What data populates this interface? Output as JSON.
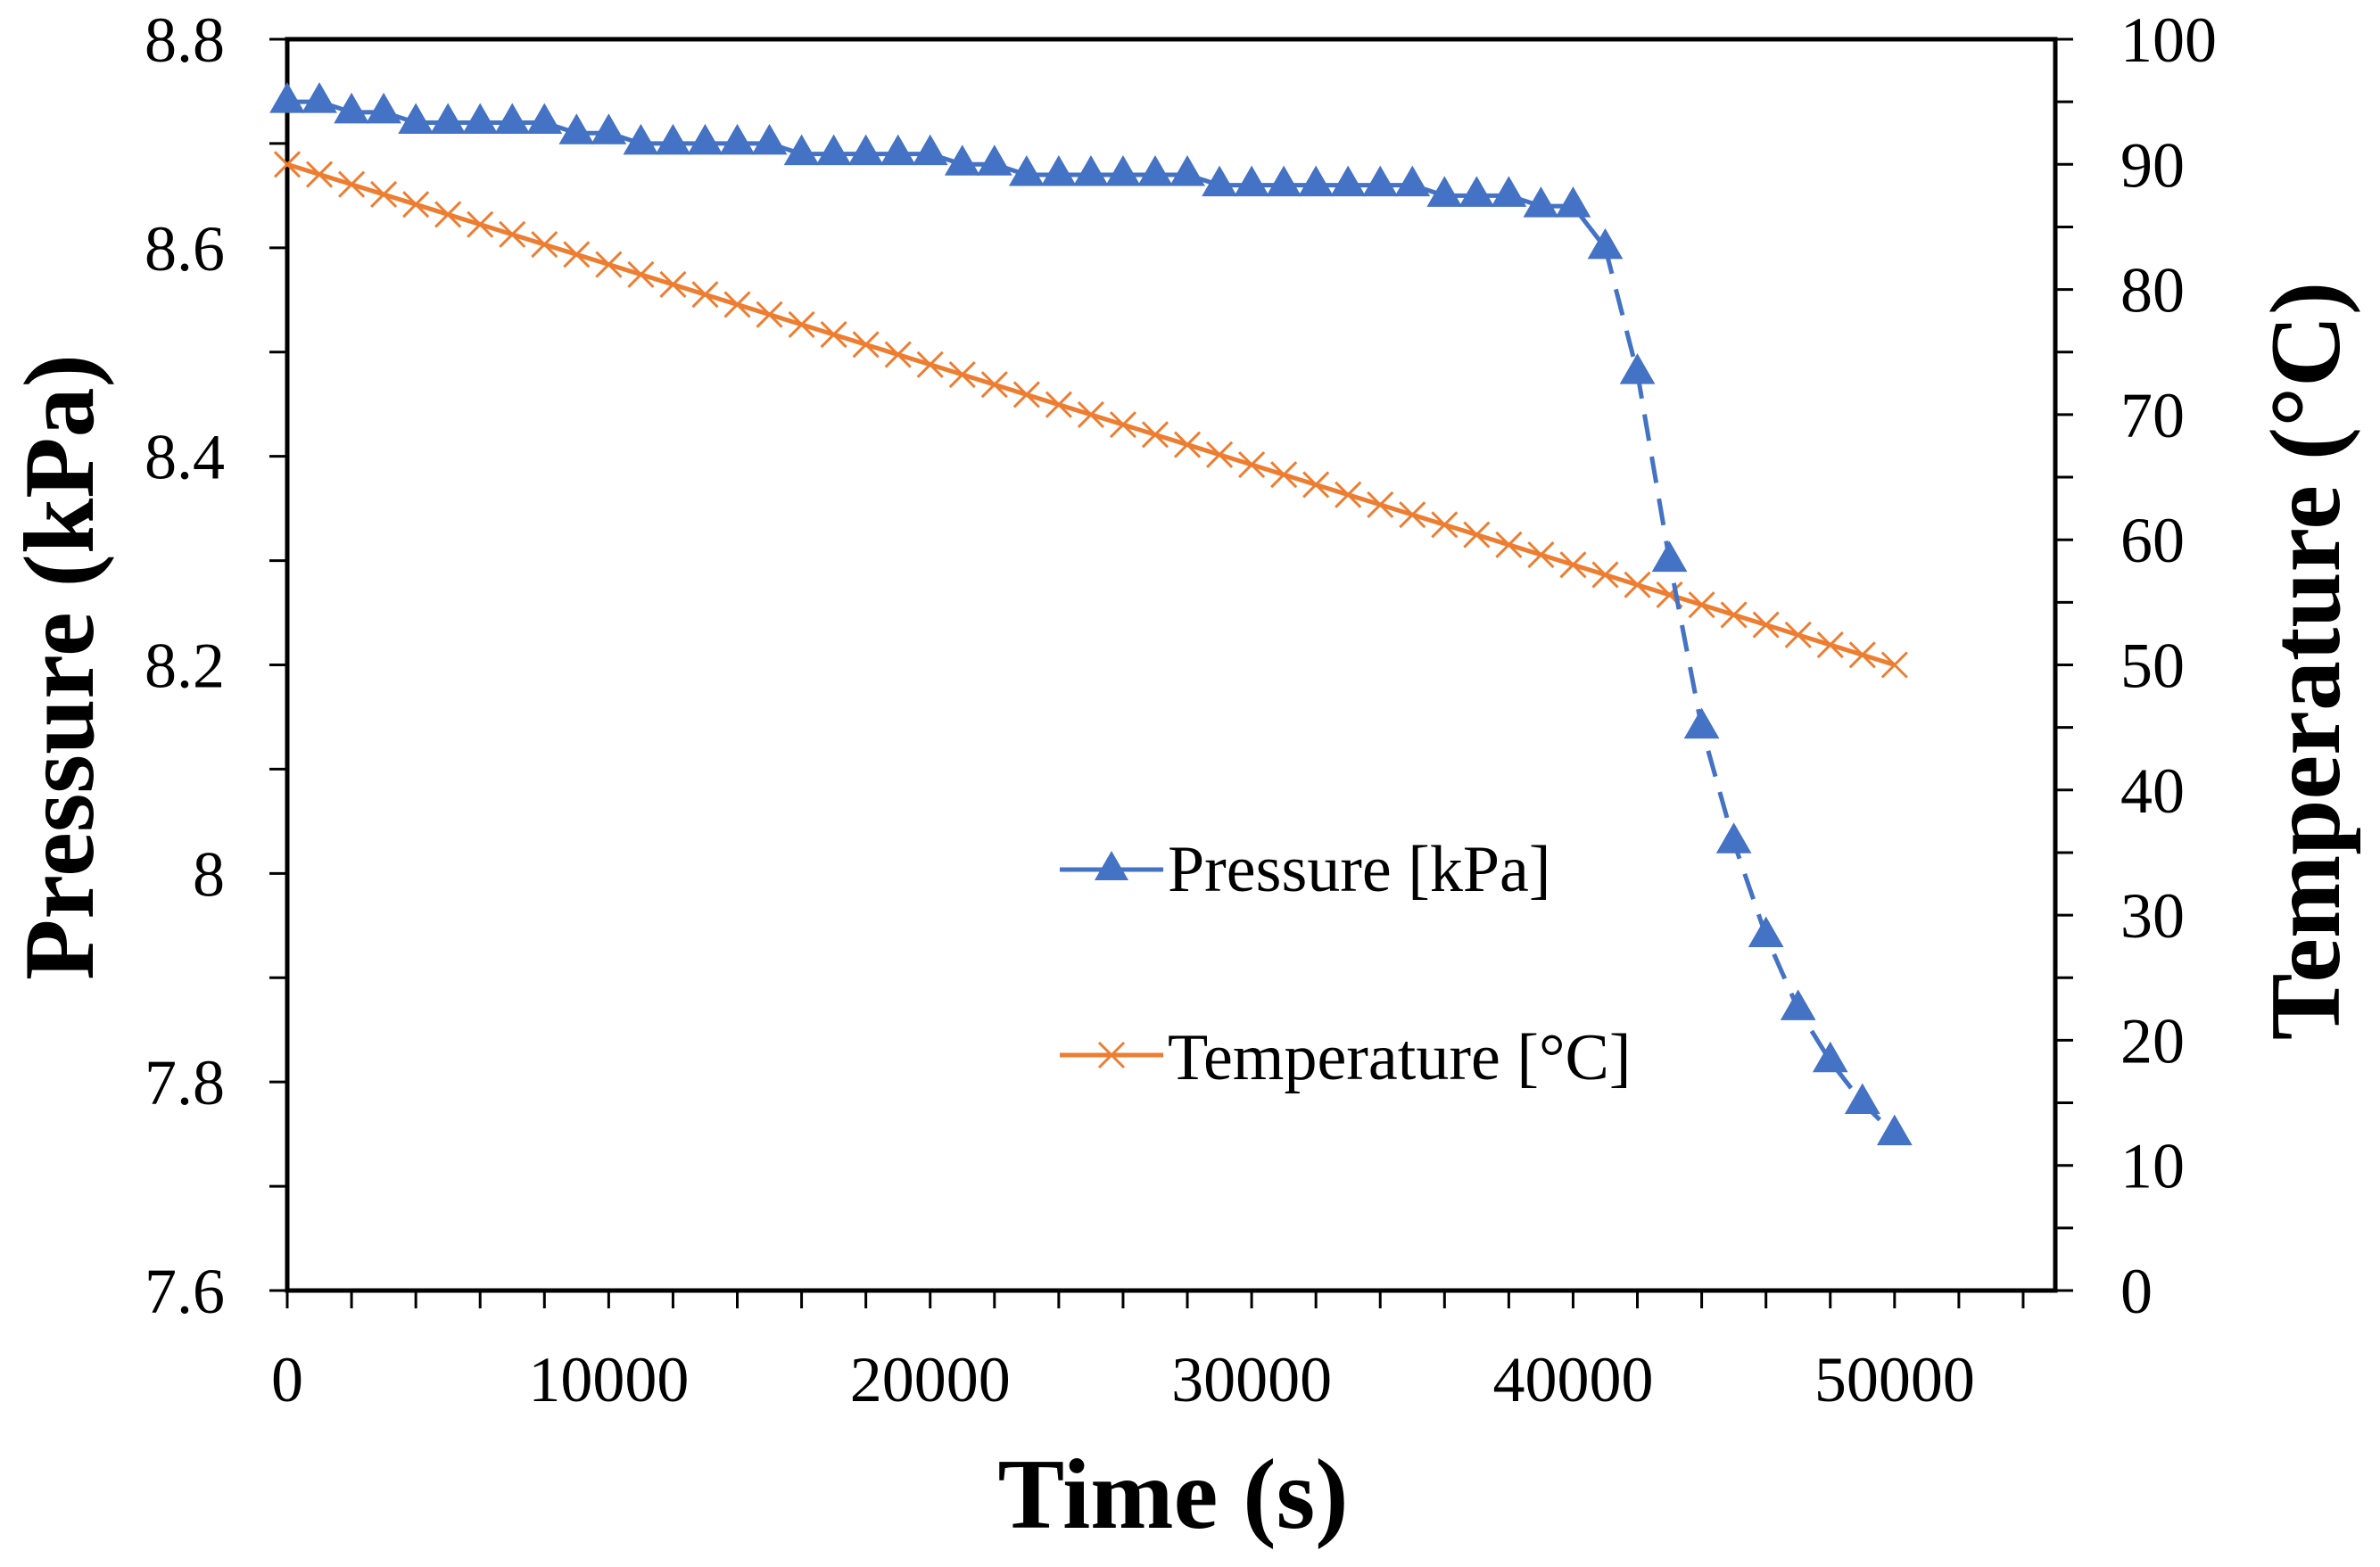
{
  "chart_data": {
    "type": "line",
    "xlabel": "Time (s)",
    "ylabel": "Pressure (kPa)",
    "y2label": "Temperature (°C)",
    "xlim": [
      0,
      55000
    ],
    "ylim": [
      7.6,
      8.8
    ],
    "y2lim": [
      0,
      100
    ],
    "xticks": [
      "0",
      "10000",
      "20000",
      "30000",
      "40000",
      "50000"
    ],
    "yticks": [
      "7.6",
      "7.8",
      "8",
      "8.2",
      "8.4",
      "8.6",
      "8.8"
    ],
    "y2ticks": [
      "0",
      "10",
      "20",
      "30",
      "40",
      "50",
      "60",
      "70",
      "80",
      "90",
      "100"
    ],
    "grid": false,
    "legend_position": "center-right",
    "x": [
      0,
      1000,
      2000,
      3000,
      4000,
      5000,
      6000,
      7000,
      8000,
      9000,
      10000,
      11000,
      12000,
      13000,
      14000,
      15000,
      16000,
      17000,
      18000,
      19000,
      20000,
      21000,
      22000,
      23000,
      24000,
      25000,
      26000,
      27000,
      28000,
      29000,
      30000,
      31000,
      32000,
      33000,
      34000,
      35000,
      36000,
      37000,
      38000,
      39000,
      40000,
      41000,
      42000,
      43000,
      44000,
      45000,
      46000,
      47000,
      48000,
      49000,
      50000
    ],
    "series": [
      {
        "name": "Pressure [kPa]",
        "axis": "left",
        "color": "#4472C4",
        "marker": "triangle",
        "values": [
          8.74,
          8.74,
          8.73,
          8.73,
          8.72,
          8.72,
          8.72,
          8.72,
          8.72,
          8.71,
          8.71,
          8.7,
          8.7,
          8.7,
          8.7,
          8.7,
          8.69,
          8.69,
          8.69,
          8.69,
          8.69,
          8.68,
          8.68,
          8.67,
          8.67,
          8.67,
          8.67,
          8.67,
          8.67,
          8.66,
          8.66,
          8.66,
          8.66,
          8.66,
          8.66,
          8.66,
          8.65,
          8.65,
          8.65,
          8.64,
          8.64,
          8.6,
          8.48,
          8.3,
          8.14,
          8.03,
          7.94,
          7.87,
          7.82,
          7.78,
          7.75
        ]
      },
      {
        "name": "Temperature [°C]",
        "axis": "right",
        "color": "#ED7D31",
        "marker": "x",
        "values": [
          90.0,
          89.2,
          88.4,
          87.6,
          86.8,
          86.0,
          85.2,
          84.4,
          83.6,
          82.8,
          82.0,
          81.2,
          80.4,
          79.6,
          78.8,
          78.0,
          77.2,
          76.4,
          75.6,
          74.8,
          74.0,
          73.2,
          72.4,
          71.6,
          70.8,
          70.0,
          69.2,
          68.4,
          67.6,
          66.8,
          66.0,
          65.2,
          64.4,
          63.6,
          62.8,
          62.0,
          61.2,
          60.4,
          59.6,
          58.8,
          58.0,
          57.2,
          56.4,
          55.6,
          54.8,
          54.0,
          53.2,
          52.4,
          51.6,
          50.8,
          50.0
        ]
      }
    ]
  }
}
